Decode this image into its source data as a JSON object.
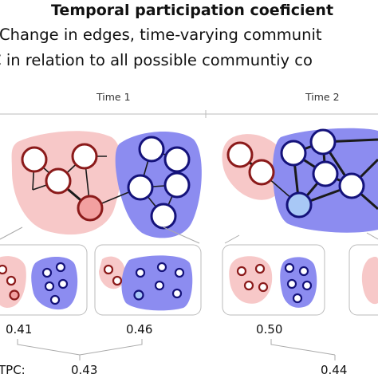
{
  "header": {
    "title": "Temporal participation coeficient",
    "line1": "Change in edges, time-varying communit",
    "line2": "C in relation to all possible communtiy co"
  },
  "timepoints": [
    {
      "label": "Time 1"
    },
    {
      "label": "Time 2"
    }
  ],
  "community_values": [
    "0.41",
    "0.46",
    "0.50"
  ],
  "tpc": {
    "label": "TPC:",
    "values": [
      "0.43",
      "0.44"
    ]
  },
  "colors": {
    "red_fill": "#f7c8c8",
    "red_stroke": "#8b1a1a",
    "blue_fill": "#8c8cf0",
    "blue_stroke": "#14127a",
    "highlight_red": "#f2a0a0",
    "highlight_blue": "#a8c8f6"
  }
}
